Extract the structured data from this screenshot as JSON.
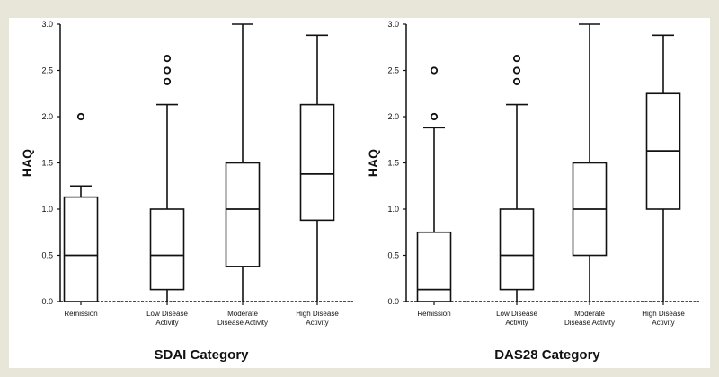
{
  "chart_data": [
    {
      "type": "box",
      "xlabel": "SDAI Category",
      "ylabel": "HAQ",
      "ylim": [
        0,
        3.0
      ],
      "yticks": [
        "0.0",
        "0.5",
        "1.0",
        "1.5",
        "2.0",
        "2.5",
        "3.0"
      ],
      "categories": [
        [
          "Remission"
        ],
        [
          "Low Disease",
          "Activity"
        ],
        [
          "Moderate",
          "Disease Activity"
        ],
        [
          "High Disease",
          "Activity"
        ]
      ],
      "boxes": [
        {
          "whisker_low": 0.0,
          "q1": 0.0,
          "median": 0.5,
          "q3": 1.13,
          "whisker_high": 1.25,
          "outliers": [
            2.0
          ]
        },
        {
          "whisker_low": 0.0,
          "q1": 0.13,
          "median": 0.5,
          "q3": 1.0,
          "whisker_high": 2.13,
          "outliers": [
            2.38,
            2.5,
            2.63
          ]
        },
        {
          "whisker_low": 0.0,
          "q1": 0.38,
          "median": 1.0,
          "q3": 1.5,
          "whisker_high": 3.0,
          "outliers": []
        },
        {
          "whisker_low": 0.0,
          "q1": 0.88,
          "median": 1.38,
          "q3": 2.13,
          "whisker_high": 2.88,
          "outliers": []
        }
      ]
    },
    {
      "type": "box",
      "xlabel": "DAS28 Category",
      "ylabel": "HAQ",
      "ylim": [
        0,
        3.0
      ],
      "yticks": [
        "0.0",
        "0.5",
        "1.0",
        "1.5",
        "2.0",
        "2.5",
        "3.0"
      ],
      "categories": [
        [
          "Remission"
        ],
        [
          "Low Disease",
          "Activity"
        ],
        [
          "Moderate",
          "Disease Activity"
        ],
        [
          "High Disease",
          "Activity"
        ]
      ],
      "boxes": [
        {
          "whisker_low": 0.0,
          "q1": 0.0,
          "median": 0.13,
          "q3": 0.75,
          "whisker_high": 1.88,
          "outliers": [
            2.0,
            2.5
          ]
        },
        {
          "whisker_low": 0.0,
          "q1": 0.13,
          "median": 0.5,
          "q3": 1.0,
          "whisker_high": 2.13,
          "outliers": [
            2.38,
            2.5,
            2.63
          ]
        },
        {
          "whisker_low": 0.0,
          "q1": 0.5,
          "median": 1.0,
          "q3": 1.5,
          "whisker_high": 3.0,
          "outliers": []
        },
        {
          "whisker_low": 0.0,
          "q1": 1.0,
          "median": 1.63,
          "q3": 2.25,
          "whisker_high": 2.88,
          "outliers": []
        }
      ]
    }
  ],
  "colors": {
    "background": "#e8e6d8",
    "panel": "#ffffff",
    "ink": "#111111"
  }
}
